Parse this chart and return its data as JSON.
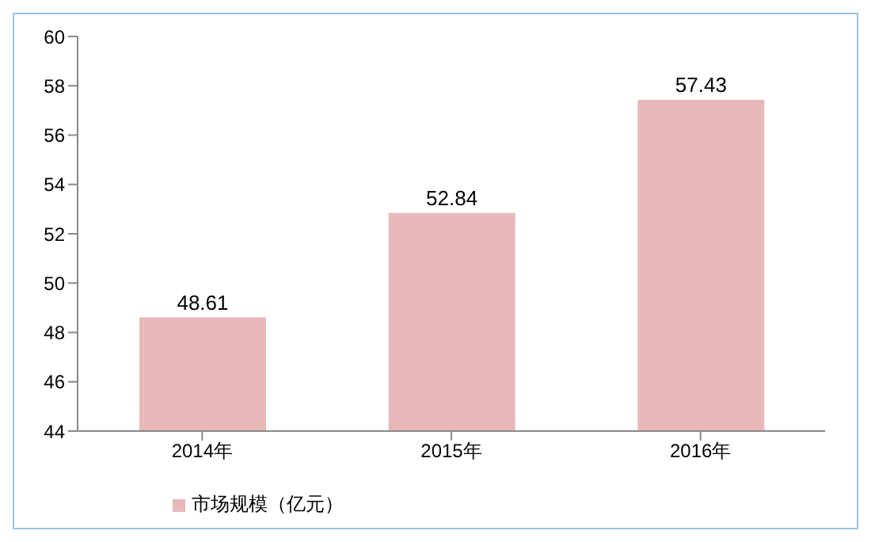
{
  "chart_data": {
    "type": "bar",
    "categories": [
      "2014年",
      "2015年",
      "2016年"
    ],
    "series": [
      {
        "name": "市场规模（亿元）",
        "color": "#e6b9b8",
        "values": [
          48.61,
          52.84,
          57.43
        ]
      }
    ],
    "ylim": [
      44,
      60
    ],
    "yticks": [
      44,
      46,
      48,
      50,
      52,
      54,
      56,
      58,
      60
    ],
    "grid": false,
    "legend": "bottom left",
    "data_labels": true
  }
}
